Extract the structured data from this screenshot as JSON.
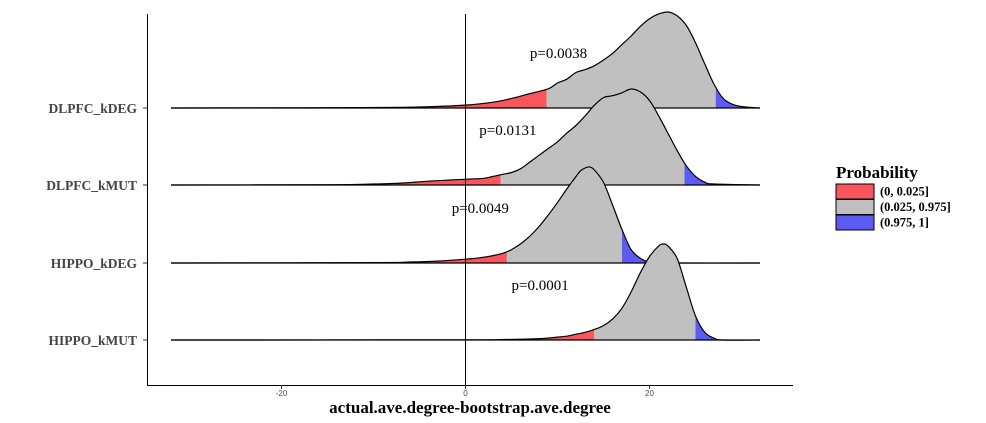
{
  "chart_data": {
    "type": "ridgeline",
    "xlabel": "actual.ave.degree-bootstrap.ave.degree",
    "xlim": [
      -32,
      32
    ],
    "x_ticks": [
      -20,
      0,
      20
    ],
    "x_tick_labels": [
      "-20",
      "0",
      "20"
    ],
    "grid": false,
    "legend": {
      "title": "Probability",
      "position": "right",
      "entries": [
        {
          "label": "(0, 0.025]",
          "color": "#F8565C"
        },
        {
          "label": "(0.025, 0.975]",
          "color": "#C0C0C0"
        },
        {
          "label": "(0.975, 1]",
          "color": "#5C5CF5"
        }
      ]
    },
    "categories": [
      "DLPFC_kDEG",
      "DLPFC_kMUT",
      "HIPPO_kDEG",
      "HIPPO_kMUT"
    ],
    "series": [
      {
        "name": "DLPFC_kDEG",
        "annotation": "p=0.0038",
        "annotation_x": 7,
        "x_range": [
          -32,
          32
        ],
        "quantiles": {
          "q025": 8.8,
          "q975": 27.2
        },
        "density": [
          [
            -32,
            0
          ],
          [
            -15,
            0.003
          ],
          [
            -10,
            0.005
          ],
          [
            -5,
            0.01
          ],
          [
            0,
            0.03
          ],
          [
            3,
            0.06
          ],
          [
            5,
            0.1
          ],
          [
            7,
            0.15
          ],
          [
            9,
            0.2
          ],
          [
            10,
            0.26
          ],
          [
            11,
            0.3
          ],
          [
            12,
            0.37
          ],
          [
            13,
            0.4
          ],
          [
            14,
            0.44
          ],
          [
            15,
            0.5
          ],
          [
            16,
            0.57
          ],
          [
            17,
            0.66
          ],
          [
            18,
            0.75
          ],
          [
            19,
            0.85
          ],
          [
            20,
            0.93
          ],
          [
            21,
            0.98
          ],
          [
            22,
            1.0
          ],
          [
            23,
            0.96
          ],
          [
            24,
            0.86
          ],
          [
            25,
            0.68
          ],
          [
            26,
            0.46
          ],
          [
            27,
            0.25
          ],
          [
            28,
            0.1
          ],
          [
            29,
            0.04
          ],
          [
            30,
            0.015
          ],
          [
            32,
            0
          ]
        ]
      },
      {
        "name": "DLPFC_kMUT",
        "annotation": "p=0.0131",
        "annotation_x": 1.5,
        "x_range": [
          -32,
          32
        ],
        "quantiles": {
          "q025": 3.8,
          "q975": 23.8
        },
        "density": [
          [
            -32,
            0
          ],
          [
            -15,
            0.003
          ],
          [
            -10,
            0.01
          ],
          [
            -7,
            0.02
          ],
          [
            -4,
            0.04
          ],
          [
            -2,
            0.05
          ],
          [
            0,
            0.06
          ],
          [
            2,
            0.07
          ],
          [
            3,
            0.09
          ],
          [
            4,
            0.11
          ],
          [
            5,
            0.13
          ],
          [
            6,
            0.17
          ],
          [
            7,
            0.24
          ],
          [
            8,
            0.31
          ],
          [
            9,
            0.38
          ],
          [
            10,
            0.45
          ],
          [
            11,
            0.54
          ],
          [
            12,
            0.62
          ],
          [
            13,
            0.72
          ],
          [
            14,
            0.83
          ],
          [
            15,
            0.91
          ],
          [
            16,
            0.93
          ],
          [
            17,
            0.96
          ],
          [
            18,
            1.0
          ],
          [
            19,
            0.97
          ],
          [
            20,
            0.88
          ],
          [
            21,
            0.72
          ],
          [
            22,
            0.54
          ],
          [
            23,
            0.36
          ],
          [
            24,
            0.2
          ],
          [
            25,
            0.09
          ],
          [
            26,
            0.03
          ],
          [
            27,
            0.01
          ],
          [
            32,
            0
          ]
        ]
      },
      {
        "name": "HIPPO_kDEG",
        "annotation": "p=0.0049",
        "annotation_x": -1.5,
        "x_range": [
          -32,
          32
        ],
        "quantiles": {
          "q025": 4.5,
          "q975": 17.0
        },
        "density": [
          [
            -32,
            0
          ],
          [
            -10,
            0.004
          ],
          [
            -6,
            0.01
          ],
          [
            -3,
            0.02
          ],
          [
            0,
            0.04
          ],
          [
            2,
            0.06
          ],
          [
            4,
            0.1
          ],
          [
            5,
            0.14
          ],
          [
            6,
            0.2
          ],
          [
            7,
            0.28
          ],
          [
            8,
            0.38
          ],
          [
            9,
            0.5
          ],
          [
            10,
            0.63
          ],
          [
            11,
            0.77
          ],
          [
            12,
            0.9
          ],
          [
            12.5,
            0.96
          ],
          [
            13,
            0.99
          ],
          [
            13.5,
            1.0
          ],
          [
            14,
            0.97
          ],
          [
            15,
            0.84
          ],
          [
            16,
            0.6
          ],
          [
            17,
            0.35
          ],
          [
            18,
            0.14
          ],
          [
            19,
            0.05
          ],
          [
            20,
            0.01
          ],
          [
            22,
            0
          ],
          [
            32,
            0
          ]
        ]
      },
      {
        "name": "HIPPO_kMUT",
        "annotation": "p=0.0001",
        "annotation_x": 5,
        "x_range": [
          -32,
          32
        ],
        "quantiles": {
          "q025": 14.0,
          "q975": 25.0
        },
        "density": [
          [
            -32,
            0
          ],
          [
            0,
            0.002
          ],
          [
            4,
            0.005
          ],
          [
            7,
            0.01
          ],
          [
            9,
            0.02
          ],
          [
            10,
            0.03
          ],
          [
            11,
            0.04
          ],
          [
            12,
            0.06
          ],
          [
            13,
            0.08
          ],
          [
            14,
            0.11
          ],
          [
            15,
            0.15
          ],
          [
            16,
            0.22
          ],
          [
            17,
            0.33
          ],
          [
            18,
            0.5
          ],
          [
            19,
            0.7
          ],
          [
            20,
            0.87
          ],
          [
            21,
            0.98
          ],
          [
            21.5,
            1.0
          ],
          [
            22,
            0.98
          ],
          [
            23,
            0.85
          ],
          [
            24,
            0.55
          ],
          [
            25,
            0.25
          ],
          [
            26,
            0.08
          ],
          [
            27,
            0.02
          ],
          [
            28,
            0
          ],
          [
            32,
            0
          ]
        ]
      }
    ]
  }
}
